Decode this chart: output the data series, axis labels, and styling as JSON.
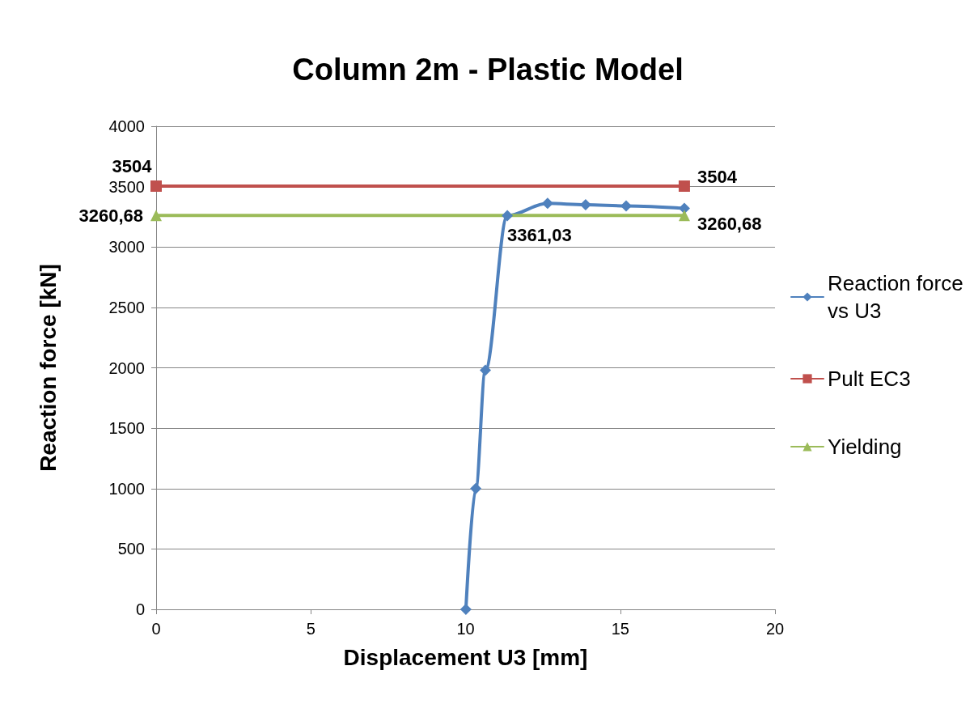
{
  "chart_data": {
    "type": "line",
    "title": "Column 2m - Plastic Model",
    "xlabel": "Displacement U3 [mm]",
    "ylabel": "Reaction force [kN]",
    "xlim": [
      0,
      20
    ],
    "xticks": [
      0,
      5,
      10,
      15,
      20
    ],
    "ylim": [
      0,
      4000
    ],
    "yticks": [
      0,
      500,
      1000,
      1500,
      2000,
      2500,
      3000,
      3500,
      4000
    ],
    "grid": "y",
    "legend": "right",
    "line_style": "solid",
    "series": [
      {
        "name": "Reaction force vs U3",
        "color": "#4f81bd",
        "marker": "diamond",
        "x": [
          10.01,
          10.33,
          10.64,
          11.35,
          12.65,
          13.88,
          15.19,
          17.07
        ],
        "values": [
          0,
          1000,
          1980,
          3260,
          3361.03,
          3350,
          3340,
          3320
        ],
        "value_labels": [
          null,
          null,
          null,
          null,
          "3361,03",
          null,
          null,
          null
        ]
      },
      {
        "name": "Pult EC3",
        "color": "#c0504d",
        "marker": "square",
        "x": [
          0,
          17.07
        ],
        "values": [
          3504,
          3504
        ],
        "value_labels": [
          "3504",
          "3504"
        ]
      },
      {
        "name": "Yielding",
        "color": "#9bbb59",
        "marker": "triangle",
        "x": [
          0,
          17.07
        ],
        "values": [
          3260.68,
          3260.68
        ],
        "value_labels": [
          "3260,68",
          "3260,68"
        ]
      }
    ]
  }
}
